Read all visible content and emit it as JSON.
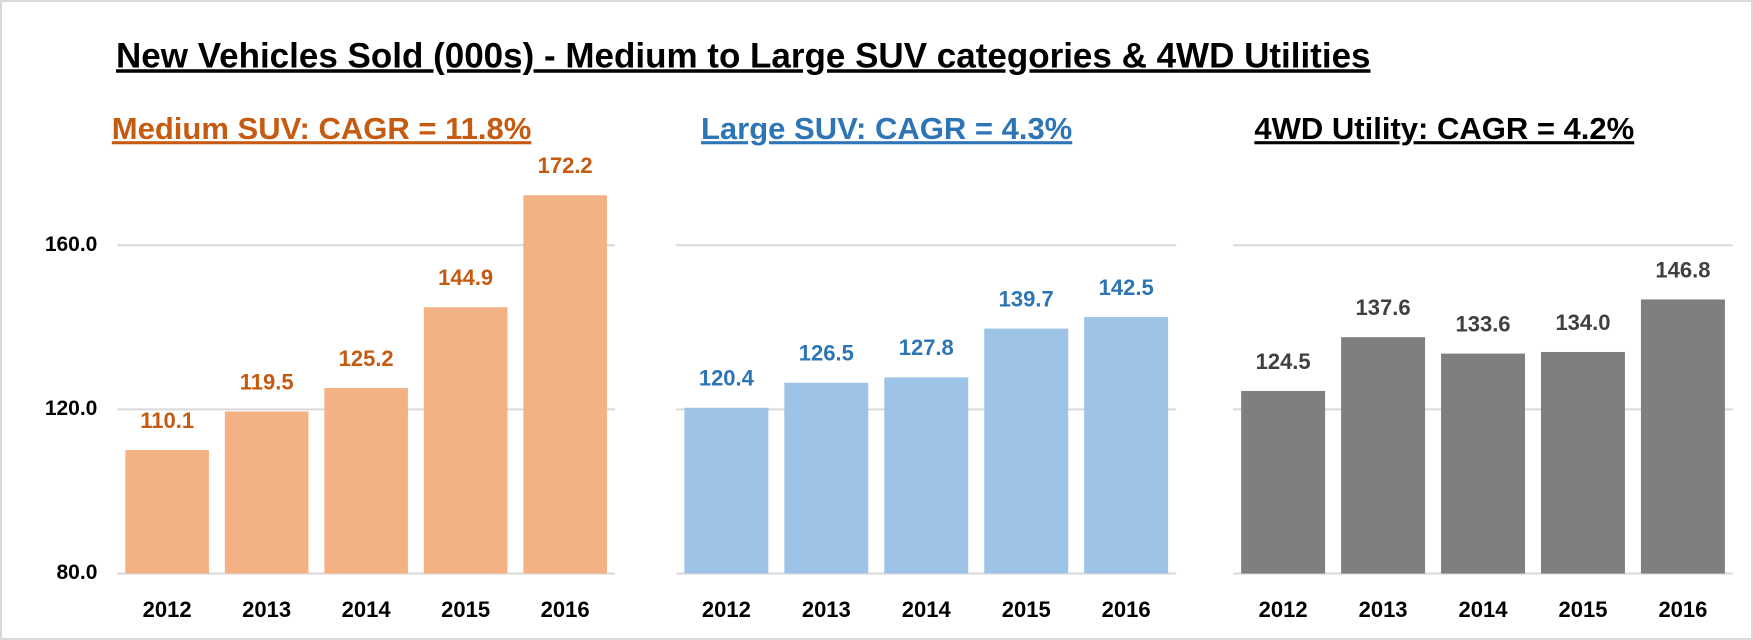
{
  "title": "New Vehicles Sold (000s) - Medium to Large SUV categories & 4WD Utilities",
  "chart_data": [
    {
      "type": "bar",
      "title": "Medium SUV: CAGR = 11.8%",
      "categories": [
        "2012",
        "2013",
        "2014",
        "2015",
        "2016"
      ],
      "values": [
        110.1,
        119.5,
        125.2,
        144.9,
        172.2
      ],
      "color": "#f4b183",
      "label_color": "#c55a11",
      "ylim": [
        80,
        180
      ],
      "yticks": [
        {
          "value": 80,
          "label": "80.0"
        },
        {
          "value": 120,
          "label": "120.0"
        },
        {
          "value": 160,
          "label": "160.0"
        }
      ],
      "grid": true
    },
    {
      "type": "bar",
      "title": "Large SUV: CAGR = 4.3%",
      "categories": [
        "2012",
        "2013",
        "2014",
        "2015",
        "2016"
      ],
      "values": [
        120.4,
        126.5,
        127.8,
        139.7,
        142.5
      ],
      "color": "#9dc3e6",
      "label_color": "#2e75b6",
      "ylim": [
        80,
        180
      ],
      "yticks": [
        80,
        120,
        160
      ],
      "grid": true
    },
    {
      "type": "bar",
      "title": "4WD Utility: CAGR = 4.2%",
      "categories": [
        "2012",
        "2013",
        "2014",
        "2015",
        "2016"
      ],
      "values": [
        124.5,
        137.6,
        133.6,
        134,
        146.8
      ],
      "value_labels": [
        "124.5",
        "137.6",
        "133.6",
        "134.0",
        "146.8"
      ],
      "color": "#7f7f7f",
      "label_color": "#404040",
      "ylim": [
        80,
        180
      ],
      "yticks": [
        80,
        120,
        160
      ],
      "grid": true
    }
  ]
}
